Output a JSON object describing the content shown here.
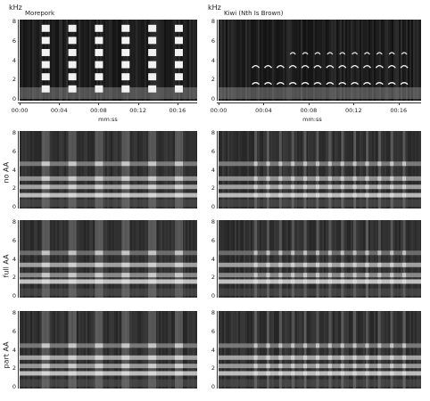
{
  "chart_data": {
    "type": "heatmap",
    "unit_label": "kHz",
    "x_axis": {
      "xlabel": "mm:ss",
      "ticks": [
        "00:00",
        "00:04",
        "00:08",
        "00:12",
        "00:16"
      ]
    },
    "y_axis": {
      "ticks": [
        "0",
        "2",
        "4",
        "6",
        "8"
      ],
      "ylim": [
        0,
        8
      ]
    },
    "columns": [
      {
        "title": "Morepork",
        "calls_at_s": [
          2.6,
          5.3,
          8.0,
          10.7,
          13.4,
          16.1
        ]
      },
      {
        "title": "Kiwi (Nth Is Brown)",
        "calls_at_s": [
          3.3,
          4.4,
          5.5,
          6.6,
          7.7,
          8.8,
          9.9,
          11.0,
          12.1,
          13.2,
          14.3,
          15.4,
          16.5
        ]
      }
    ],
    "rows": [
      {
        "label": ""
      },
      {
        "label": "no AA"
      },
      {
        "label": "full AA"
      },
      {
        "label": "part AA"
      }
    ],
    "colormap": "grayscale",
    "grid": false
  }
}
